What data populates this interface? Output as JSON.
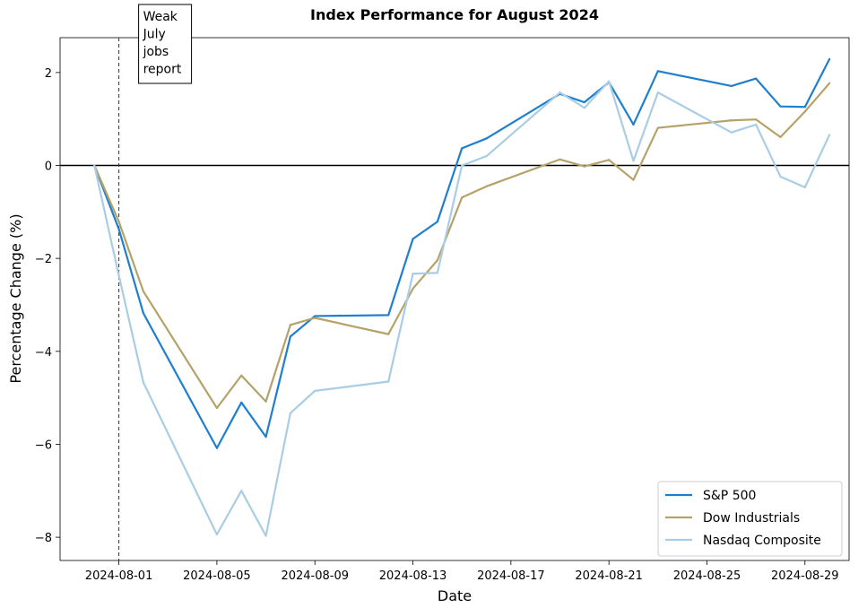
{
  "chart_data": {
    "type": "line",
    "title": "Index Performance for August 2024",
    "xlabel": "Date",
    "ylabel": "Percentage Change (%)",
    "x": [
      "2024-07-31",
      "2024-08-01",
      "2024-08-02",
      "2024-08-05",
      "2024-08-06",
      "2024-08-07",
      "2024-08-08",
      "2024-08-09",
      "2024-08-12",
      "2024-08-13",
      "2024-08-14",
      "2024-08-15",
      "2024-08-16",
      "2024-08-19",
      "2024-08-20",
      "2024-08-21",
      "2024-08-22",
      "2024-08-23",
      "2024-08-26",
      "2024-08-27",
      "2024-08-28",
      "2024-08-29",
      "2024-08-30"
    ],
    "series": [
      {
        "name": "S&P 500",
        "color": "#1f7fcf",
        "values": [
          0.0,
          -1.37,
          -3.18,
          -6.08,
          -5.1,
          -5.84,
          -3.68,
          -3.24,
          -3.22,
          -1.58,
          -1.21,
          0.37,
          0.58,
          1.54,
          1.36,
          1.79,
          0.88,
          2.03,
          1.71,
          1.87,
          1.27,
          1.26,
          2.29
        ]
      },
      {
        "name": "Dow Industrials",
        "color": "#b5a26a",
        "values": [
          0.0,
          -1.21,
          -2.71,
          -5.22,
          -4.52,
          -5.08,
          -3.43,
          -3.28,
          -3.63,
          -2.65,
          -2.04,
          -0.69,
          -0.45,
          0.13,
          -0.02,
          0.12,
          -0.31,
          0.81,
          0.97,
          0.99,
          0.61,
          1.16,
          1.77
        ]
      },
      {
        "name": "Nasdaq Composite",
        "color": "#a8cde4",
        "values": [
          0.0,
          -2.37,
          -4.67,
          -7.94,
          -7.0,
          -7.97,
          -5.33,
          -4.85,
          -4.65,
          -2.33,
          -2.31,
          0.0,
          0.2,
          1.57,
          1.24,
          1.81,
          0.1,
          1.57,
          0.71,
          0.88,
          -0.24,
          -0.47,
          0.66
        ]
      }
    ],
    "xticks": [
      "2024-08-01",
      "2024-08-05",
      "2024-08-09",
      "2024-08-13",
      "2024-08-17",
      "2024-08-21",
      "2024-08-25",
      "2024-08-29"
    ],
    "yticks": [
      2,
      0,
      -2,
      -4,
      -6,
      -8
    ],
    "ylim": [
      -8.5,
      2.75
    ],
    "xlim": [
      "2024-07-29.6",
      "2024-08-30.8"
    ],
    "annotation": {
      "date": "2024-08-01",
      "text": [
        "Weak",
        "July",
        "jobs",
        "report"
      ]
    },
    "zero_line": true,
    "grid": false,
    "legend_position": "lower-right"
  }
}
